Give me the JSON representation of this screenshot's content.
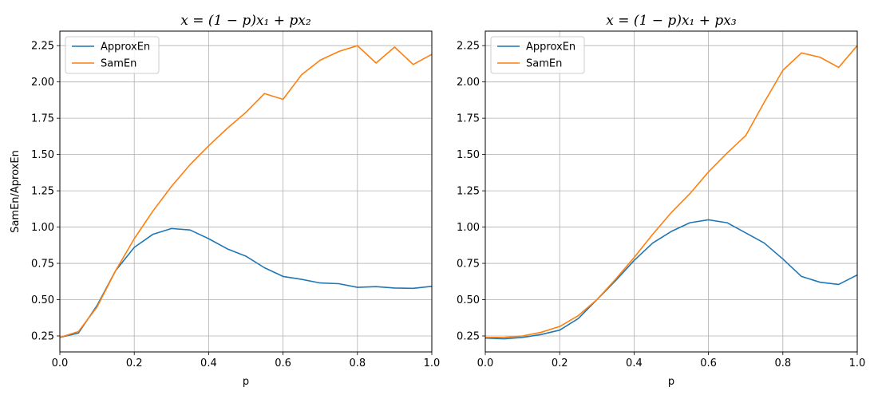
{
  "chart_data": [
    {
      "type": "line",
      "title": "x = (1 − p)x₁ + px₂",
      "xlabel": "p",
      "ylabel": "SamEn/AproxEn",
      "xlim": [
        0.0,
        1.0
      ],
      "ylim": [
        0.14,
        2.35
      ],
      "grid": true,
      "legend_position": "top-left",
      "xticks": [
        0.0,
        0.2,
        0.4,
        0.6,
        0.8,
        1.0
      ],
      "xtick_labels": [
        "0.0",
        "0.2",
        "0.4",
        "0.6",
        "0.8",
        "1.0"
      ],
      "yticks": [
        0.25,
        0.5,
        0.75,
        1.0,
        1.25,
        1.5,
        1.75,
        2.0,
        2.25
      ],
      "ytick_labels": [
        "0.25",
        "0.50",
        "0.75",
        "1.00",
        "1.25",
        "1.50",
        "1.75",
        "2.00",
        "2.25"
      ],
      "x": [
        0.0,
        0.05,
        0.1,
        0.15,
        0.2,
        0.25,
        0.3,
        0.35,
        0.4,
        0.45,
        0.5,
        0.55,
        0.6,
        0.65,
        0.7,
        0.75,
        0.8,
        0.85,
        0.9,
        0.95,
        1.0
      ],
      "series": [
        {
          "name": "ApproxEn",
          "color": "#1f77b4",
          "values": [
            0.24,
            0.27,
            0.46,
            0.7,
            0.86,
            0.95,
            0.99,
            0.98,
            0.92,
            0.85,
            0.8,
            0.72,
            0.66,
            0.64,
            0.615,
            0.61,
            0.585,
            0.59,
            0.58,
            0.578,
            0.592
          ]
        },
        {
          "name": "SamEn",
          "color": "#ff7f0e",
          "values": [
            0.24,
            0.28,
            0.45,
            0.7,
            0.92,
            1.11,
            1.28,
            1.43,
            1.56,
            1.68,
            1.79,
            1.92,
            1.88,
            2.05,
            2.15,
            2.21,
            2.25,
            2.13,
            2.24,
            2.12,
            2.19
          ]
        }
      ]
    },
    {
      "type": "line",
      "title": "x = (1 − p)x₁ + px₃",
      "xlabel": "p",
      "ylabel": "",
      "xlim": [
        0.0,
        1.0
      ],
      "ylim": [
        0.14,
        2.35
      ],
      "grid": true,
      "legend_position": "top-left",
      "xticks": [
        0.0,
        0.2,
        0.4,
        0.6,
        0.8,
        1.0
      ],
      "xtick_labels": [
        "0.0",
        "0.2",
        "0.4",
        "0.6",
        "0.8",
        "1.0"
      ],
      "yticks": [
        0.25,
        0.5,
        0.75,
        1.0,
        1.25,
        1.5,
        1.75,
        2.0,
        2.25
      ],
      "ytick_labels": [
        "0.25",
        "0.50",
        "0.75",
        "1.00",
        "1.25",
        "1.50",
        "1.75",
        "2.00",
        "2.25"
      ],
      "x": [
        0.0,
        0.05,
        0.1,
        0.15,
        0.2,
        0.25,
        0.3,
        0.35,
        0.4,
        0.45,
        0.5,
        0.55,
        0.6,
        0.65,
        0.7,
        0.75,
        0.8,
        0.85,
        0.9,
        0.95,
        1.0
      ],
      "series": [
        {
          "name": "ApproxEn",
          "color": "#1f77b4",
          "values": [
            0.235,
            0.23,
            0.24,
            0.26,
            0.29,
            0.37,
            0.5,
            0.63,
            0.77,
            0.89,
            0.97,
            1.03,
            1.05,
            1.03,
            0.96,
            0.89,
            0.78,
            0.66,
            0.62,
            0.605,
            0.67
          ]
        },
        {
          "name": "SamEn",
          "color": "#ff7f0e",
          "values": [
            0.24,
            0.24,
            0.25,
            0.275,
            0.315,
            0.39,
            0.5,
            0.64,
            0.79,
            0.95,
            1.1,
            1.23,
            1.38,
            1.51,
            1.63,
            1.86,
            2.08,
            2.2,
            2.17,
            2.1,
            2.25
          ]
        }
      ]
    }
  ]
}
